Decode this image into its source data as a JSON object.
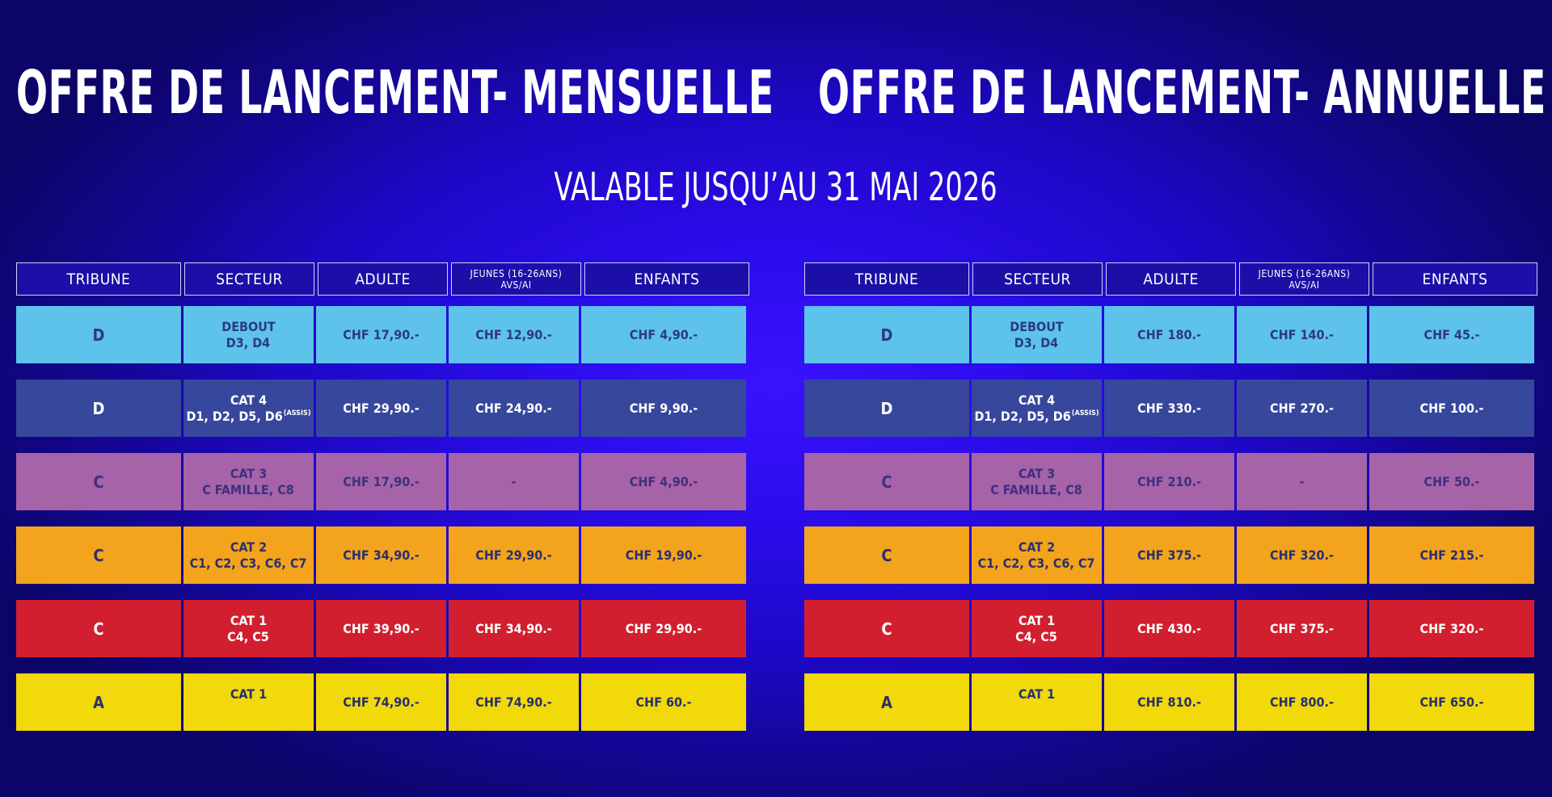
{
  "headlines": {
    "left": "OFFRE DE LANCEMENT- MENSUELLE",
    "right": "OFFRE DE LANCEMENT- ANNUELLE"
  },
  "subtitle": "VALABLE JUSQU’AU 31 MAI 2026",
  "colors": {
    "background": "#1d08c4",
    "rows": [
      "#5dc3ea",
      "#36479c",
      "#a663a7",
      "#f4a41c",
      "#d21f2f",
      "#f1d90a"
    ]
  },
  "headers": {
    "tribune": "TRIBUNE",
    "secteur": "SECTEUR",
    "adulte": "ADULTE",
    "jeunes_line1": "JEUNES (16-26ANS)",
    "jeunes_line2": "AVS/AI",
    "enfants": "ENFANTS"
  },
  "rows": [
    {
      "tribune": "D",
      "secteur_line1": "DEBOUT",
      "secteur_line2": "D3, D4",
      "secteur_sup": ""
    },
    {
      "tribune": "D",
      "secteur_line1": "CAT 4",
      "secteur_line2": "D1, D2, D5, D6",
      "secteur_sup": "(ASSIS)"
    },
    {
      "tribune": "C",
      "secteur_line1": "CAT 3",
      "secteur_line2": "C FAMILLE, C8",
      "secteur_sup": ""
    },
    {
      "tribune": "C",
      "secteur_line1": "CAT 2",
      "secteur_line2": "C1, C2, C3, C6, C7",
      "secteur_sup": ""
    },
    {
      "tribune": "C",
      "secteur_line1": "CAT 1",
      "secteur_line2": "C4, C5",
      "secteur_sup": ""
    },
    {
      "tribune": "A",
      "secteur_line1": "CAT 1",
      "secteur_line2": "",
      "secteur_sup": ""
    }
  ],
  "monthly": [
    {
      "adulte": "CHF 17,90.-",
      "jeunes": "CHF 12,90.-",
      "enfants": "CHF 4,90.-"
    },
    {
      "adulte": "CHF 29,90.-",
      "jeunes": "CHF 24,90.-",
      "enfants": "CHF 9,90.-"
    },
    {
      "adulte": "CHF 17,90.-",
      "jeunes": "-",
      "enfants": "CHF 4,90.-"
    },
    {
      "adulte": "CHF 34,90.-",
      "jeunes": "CHF 29,90.-",
      "enfants": "CHF 19,90.-"
    },
    {
      "adulte": "CHF 39,90.-",
      "jeunes": "CHF 34,90.-",
      "enfants": "CHF 29,90.-"
    },
    {
      "adulte": "CHF 74,90.-",
      "jeunes": "CHF 74,90.-",
      "enfants": "CHF 60.-"
    }
  ],
  "annual": [
    {
      "adulte": "CHF 180.-",
      "jeunes": "CHF 140.-",
      "enfants": "CHF 45.-"
    },
    {
      "adulte": "CHF 330.-",
      "jeunes": "CHF 270.-",
      "enfants": "CHF 100.-"
    },
    {
      "adulte": "CHF 210.-",
      "jeunes": "-",
      "enfants": "CHF 50.-"
    },
    {
      "adulte": "CHF 375.-",
      "jeunes": "CHF 320.-",
      "enfants": "CHF 215.-"
    },
    {
      "adulte": "CHF 430.-",
      "jeunes": "CHF 375.-",
      "enfants": "CHF 320.-"
    },
    {
      "adulte": "CHF 810.-",
      "jeunes": "CHF 800.-",
      "enfants": "CHF 650.-"
    }
  ]
}
